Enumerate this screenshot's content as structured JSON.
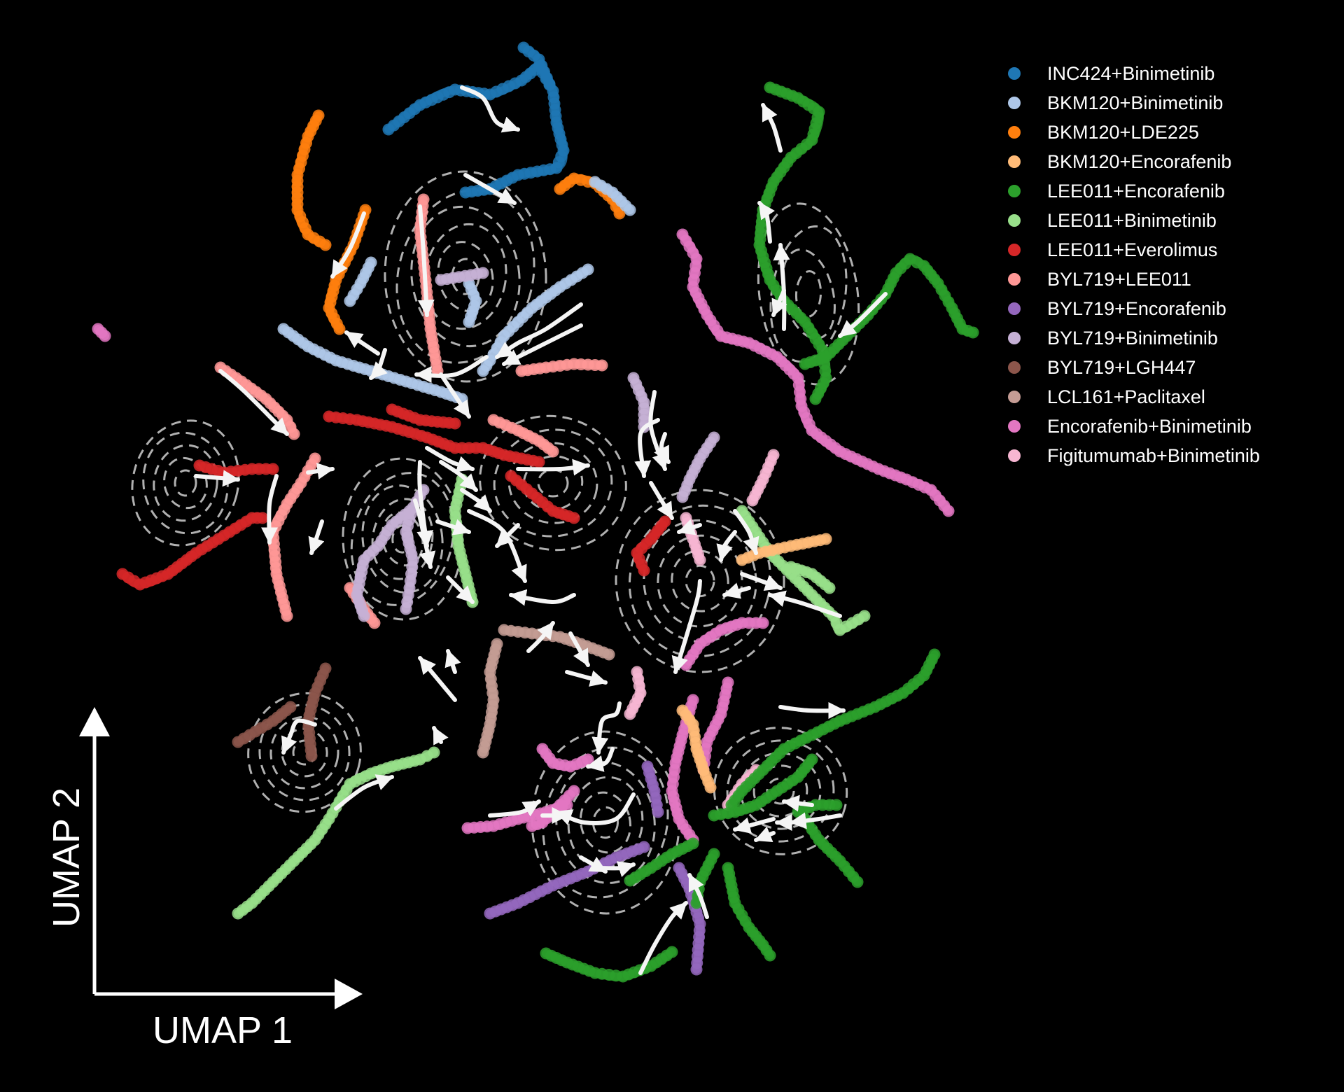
{
  "chart_data": {
    "type": "scatter",
    "title": "",
    "xlabel": "UMAP 1",
    "ylabel": "UMAP 2",
    "grid": false,
    "legend_position": "top-right",
    "background": "#000000",
    "stream_color": "#f5f5f5",
    "contour_color": "#cfcfcf",
    "series": [
      {
        "name": "INC424+Binimetinib",
        "color": "#1f77b4"
      },
      {
        "name": "BKM120+Binimetinib",
        "color": "#aec7e8"
      },
      {
        "name": "BKM120+LDE225",
        "color": "#ff7f0e"
      },
      {
        "name": "BKM120+Encorafenib",
        "color": "#ffbb78"
      },
      {
        "name": "LEE011+Encorafenib",
        "color": "#2ca02c"
      },
      {
        "name": "LEE011+Binimetinib",
        "color": "#98df8a"
      },
      {
        "name": "LEE011+Everolimus",
        "color": "#d62728"
      },
      {
        "name": "BYL719+LEE011",
        "color": "#ff9896"
      },
      {
        "name": "BYL719+Encorafenib",
        "color": "#9467bd"
      },
      {
        "name": "BYL719+Binimetinib",
        "color": "#c5b0d5"
      },
      {
        "name": "BYL719+LGH447",
        "color": "#8c564b"
      },
      {
        "name": "LCL161+Paclitaxel",
        "color": "#c49c94"
      },
      {
        "name": "Encorafenib+Binimetinib",
        "color": "#e377c2"
      },
      {
        "name": "Figitumumab+Binimetinib",
        "color": "#f7b6d2"
      }
    ]
  }
}
